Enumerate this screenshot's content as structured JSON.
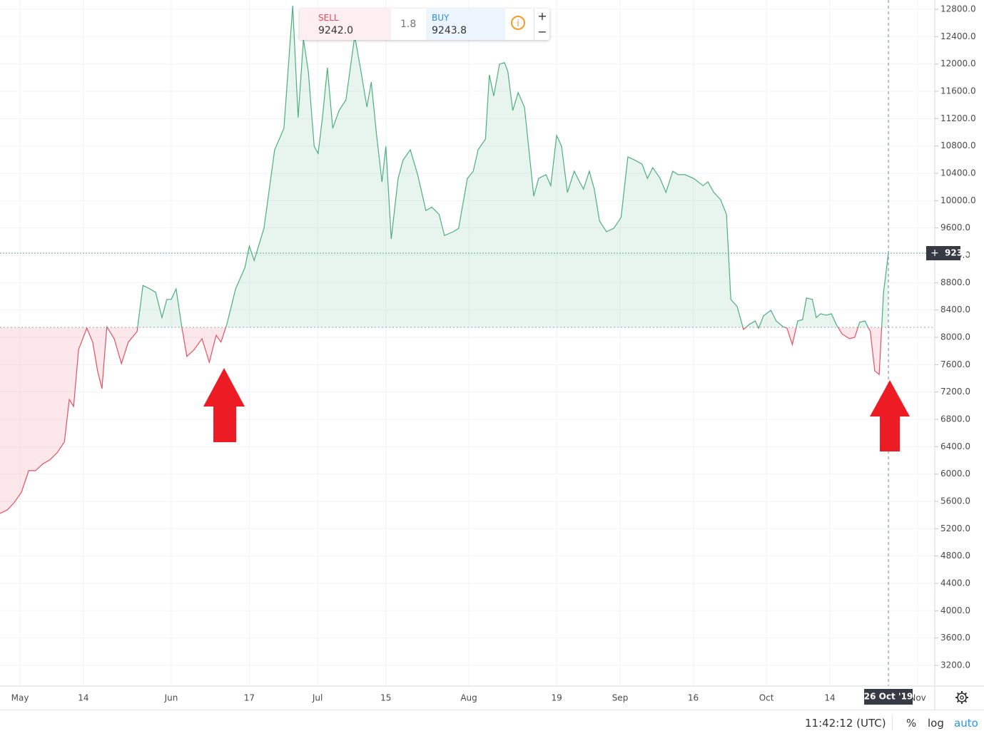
{
  "toolbar": {
    "sell_label": "SELL",
    "sell_price": "9242.0",
    "spread": "1.8",
    "buy_label": "BUY",
    "buy_price": "9243.8"
  },
  "chart_data": {
    "type": "baseline-area",
    "x": [
      -4.1,
      -2.6,
      -1.2,
      0.3,
      1.8,
      3.2,
      4.7,
      6.1,
      7.6,
      9.1,
      10.1,
      11.0,
      12.0,
      13.7,
      14.9,
      15.9,
      16.8,
      17.8,
      19.3,
      20.8,
      22.2,
      24.0,
      25.2,
      26.6,
      27.8,
      29.1,
      30.1,
      31.0,
      32.0,
      33.2,
      34.2,
      35.7,
      37.3,
      38.8,
      40.2,
      41.2,
      42.4,
      44.2,
      46.1,
      47.0,
      48.0,
      50.0,
      52.2,
      54.1,
      55.9,
      57.0,
      58.1,
      59.1,
      60.3,
      61.1,
      62.0,
      63.0,
      64.1,
      65.4,
      66.8,
      68.6,
      69.9,
      71.1,
      72.0,
      73.1,
      74.2,
      75.0,
      76.1,
      77.5,
      78.5,
      80.0,
      81.5,
      83.2,
      84.4,
      85.9,
      87.0,
      88.8,
      89.9,
      91.7,
      92.9,
      93.9,
      95.4,
      96.2,
      97.1,
      98.3,
      99.3,
      100.0,
      101.0,
      102.1,
      103.4,
      105.3,
      106.3,
      107.8,
      108.8,
      110.0,
      111.0,
      112.2,
      113.6,
      114.7,
      115.5,
      116.7,
      117.7,
      118.8,
      120.2,
      121.7,
      123.2,
      124.6,
      126.1,
      127.5,
      128.6,
      129.7,
      131.2,
      132.4,
      133.8,
      134.9,
      136.3,
      138.1,
      140.0,
      141.0,
      142.2,
      143.6,
      144.8,
      145.7,
      147.0,
      148.3,
      149.5,
      150.7,
      151.4,
      152.4,
      153.9,
      155.0,
      156.4,
      157.2,
      158.3,
      159.4,
      160.4,
      161.2,
      162.4,
      163.2,
      164.1,
      165.3,
      166.3,
      167.3,
      168.5,
      170.0,
      171.1,
      172.1,
      173.2,
      174.3,
      175.2,
      176.1,
      177.0,
      178
    ],
    "values": [
      5423,
      5475,
      5580,
      5735,
      6050,
      6050,
      6150,
      6205,
      6310,
      6470,
      7090,
      6990,
      7820,
      8135,
      7930,
      7510,
      7250,
      8155,
      7980,
      7615,
      7930,
      8085,
      8760,
      8710,
      8660,
      8290,
      8555,
      8555,
      8710,
      8135,
      7720,
      7820,
      7980,
      7635,
      8030,
      7930,
      8190,
      8710,
      9020,
      9335,
      9125,
      9595,
      10745,
      11060,
      12850,
      11215,
      12360,
      11890,
      10795,
      10690,
      11215,
      11945,
      11060,
      11320,
      11475,
      12410,
      11890,
      11370,
      11735,
      10955,
      10275,
      10795,
      9440,
      10325,
      10590,
      10745,
      10380,
      9855,
      9905,
      9800,
      9490,
      9545,
      9595,
      10325,
      10430,
      10745,
      10900,
      11840,
      11530,
      12000,
      12020,
      11890,
      11320,
      11580,
      11370,
      10065,
      10325,
      10380,
      10220,
      10955,
      10795,
      10120,
      10430,
      10275,
      10170,
      10430,
      10170,
      9700,
      9545,
      9595,
      9755,
      10640,
      10590,
      10535,
      10325,
      10485,
      10325,
      10120,
      10430,
      10380,
      10380,
      10325,
      10220,
      10275,
      10120,
      10015,
      9800,
      8555,
      8450,
      8115,
      8190,
      8240,
      8135,
      8315,
      8395,
      8240,
      8155,
      8135,
      7895,
      8240,
      8260,
      8575,
      8555,
      8290,
      8345,
      8325,
      8345,
      8190,
      8050,
      7980,
      8000,
      8220,
      8240,
      8085,
      7510,
      7455,
      8655,
      9231.4
    ],
    "baseline": 8146,
    "up_color": "#4caf7d",
    "down_color": "#e5505f",
    "crosshair": {
      "value": 178,
      "label": "26 Oct '19"
    },
    "xlim": [
      -4.1,
      187.5
    ],
    "xticks": [
      {
        "value": 0,
        "label": "May"
      },
      {
        "value": 13,
        "label": "14"
      },
      {
        "value": 31,
        "label": "Jun"
      },
      {
        "value": 47,
        "label": "17"
      },
      {
        "value": 61,
        "label": "Jul"
      },
      {
        "value": 75,
        "label": "15"
      },
      {
        "value": 92,
        "label": "Aug"
      },
      {
        "value": 110,
        "label": "19"
      },
      {
        "value": 123,
        "label": "Sep"
      },
      {
        "value": 138,
        "label": "16"
      },
      {
        "value": 153,
        "label": "Oct"
      },
      {
        "value": 166,
        "label": "14"
      },
      {
        "value": 184,
        "label": "Nov"
      }
    ],
    "ylim": [
      2897,
      12936
    ],
    "yticks": [
      {
        "value": 3200,
        "label": "3200.0"
      },
      {
        "value": 3600,
        "label": "3600.0"
      },
      {
        "value": 4000,
        "label": "4000.0"
      },
      {
        "value": 4400,
        "label": "4400.0"
      },
      {
        "value": 4800,
        "label": "4800.0"
      },
      {
        "value": 5200,
        "label": "5200.0"
      },
      {
        "value": 5600,
        "label": "5600.0"
      },
      {
        "value": 6000,
        "label": "6000.0"
      },
      {
        "value": 6400,
        "label": "6400.0"
      },
      {
        "value": 6800,
        "label": "6800.0"
      },
      {
        "value": 7200,
        "label": "7200.0"
      },
      {
        "value": 7600,
        "label": "7600.0"
      },
      {
        "value": 8000,
        "label": "8000.0"
      },
      {
        "value": 8400,
        "label": "8400.0"
      },
      {
        "value": 8800,
        "label": "8800.0"
      },
      {
        "value": 9200,
        "label": "9200.0"
      },
      {
        "value": 9600,
        "label": "9600.0"
      },
      {
        "value": 10000,
        "label": "10000.0"
      },
      {
        "value": 10400,
        "label": "10400.0"
      },
      {
        "value": 10800,
        "label": "10800.0"
      },
      {
        "value": 11200,
        "label": "11200.0"
      },
      {
        "value": 11600,
        "label": "11600.0"
      },
      {
        "value": 12000,
        "label": "12000.0"
      },
      {
        "value": 12400,
        "label": "12400.0"
      },
      {
        "value": 12800,
        "label": "12800.0"
      }
    ],
    "grid": true
  },
  "status_bar": {
    "time": "11:42:12 (UTC)",
    "percent": "%",
    "log": "log",
    "auto": "auto"
  }
}
